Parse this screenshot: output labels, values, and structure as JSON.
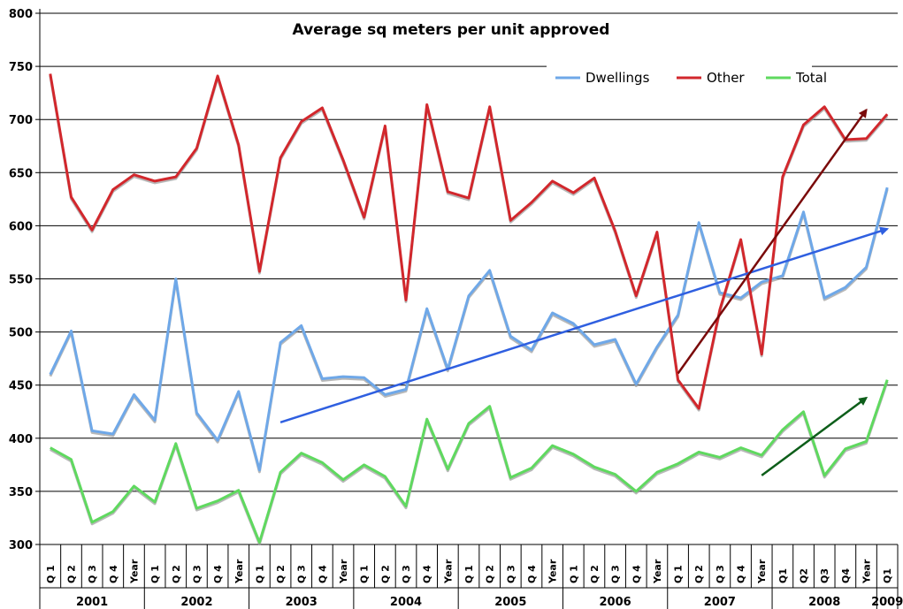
{
  "chart_data": {
    "type": "line",
    "title": "Average sq meters per unit approved",
    "xlabel": "",
    "ylabel": "",
    "ylim": [
      300,
      800
    ],
    "yticks": [
      300,
      350,
      400,
      450,
      500,
      550,
      600,
      650,
      700,
      750,
      800
    ],
    "grid": true,
    "legend_position": "top-right",
    "categories": [
      "Q 1",
      "Q 2",
      "Q 3",
      "Q 4",
      "Year",
      "Q 1",
      "Q 2",
      "Q 3",
      "Q 4",
      "Year",
      "Q 1",
      "Q 2",
      "Q 3",
      "Q 4",
      "Year",
      "Q 1",
      "Q 2",
      "Q 3",
      "Q 4",
      "Year",
      "Q 1",
      "Q 2",
      "Q 3",
      "Q 4",
      "Year",
      "Q 1",
      "Q 2",
      "Q 3",
      "Q 4",
      "Year",
      "Q 1",
      "Q 2",
      "Q 3",
      "Q 4",
      "Year",
      "Q1",
      "Q2",
      "Q3",
      "Q4",
      "Year",
      "Q1"
    ],
    "year_groups": [
      {
        "label": "2001",
        "start": 0,
        "count": 5
      },
      {
        "label": "2002",
        "start": 5,
        "count": 5
      },
      {
        "label": "2003",
        "start": 10,
        "count": 5
      },
      {
        "label": "2004",
        "start": 15,
        "count": 5
      },
      {
        "label": "2005",
        "start": 20,
        "count": 5
      },
      {
        "label": "2006",
        "start": 25,
        "count": 5
      },
      {
        "label": "2007",
        "start": 30,
        "count": 5
      },
      {
        "label": "2008",
        "start": 35,
        "count": 5
      },
      {
        "label": "2009",
        "start": 40,
        "count": 1
      }
    ],
    "series": [
      {
        "name": "Dwellings",
        "color": "#6fa8e8",
        "values": [
          460,
          501,
          407,
          404,
          441,
          417,
          550,
          424,
          398,
          444,
          370,
          490,
          506,
          456,
          458,
          457,
          441,
          446,
          522,
          465,
          534,
          558,
          496,
          483,
          518,
          508,
          488,
          493,
          451,
          486,
          516,
          603,
          537,
          532,
          547,
          553,
          613,
          532,
          542,
          561,
          636
        ]
      },
      {
        "name": "Other",
        "color": "#d2272c",
        "values": [
          743,
          627,
          596,
          634,
          648,
          642,
          646,
          673,
          741,
          676,
          557,
          664,
          698,
          711,
          662,
          608,
          694,
          530,
          714,
          632,
          626,
          712,
          605,
          622,
          642,
          631,
          645,
          595,
          534,
          594,
          455,
          428,
          521,
          587,
          479,
          646,
          695,
          712,
          681,
          682,
          705
        ]
      },
      {
        "name": "Total",
        "color": "#5fd95f",
        "values": [
          391,
          380,
          321,
          331,
          355,
          340,
          395,
          334,
          341,
          351,
          302,
          368,
          386,
          377,
          361,
          375,
          364,
          336,
          418,
          371,
          414,
          430,
          363,
          372,
          393,
          385,
          373,
          366,
          350,
          368,
          376,
          387,
          382,
          391,
          384,
          408,
          425,
          365,
          390,
          397,
          455
        ]
      }
    ],
    "trend_arrows": [
      {
        "name": "dwellings-trend",
        "color": "#2f5fe0",
        "from": [
          11,
          415
        ],
        "to": [
          40,
          597
        ]
      },
      {
        "name": "other-trend",
        "color": "#7a0a0a",
        "from": [
          30,
          461
        ],
        "to": [
          39,
          709
        ]
      },
      {
        "name": "total-trend",
        "color": "#0d5e1a",
        "from": [
          34,
          365
        ],
        "to": [
          39,
          438
        ]
      }
    ]
  }
}
